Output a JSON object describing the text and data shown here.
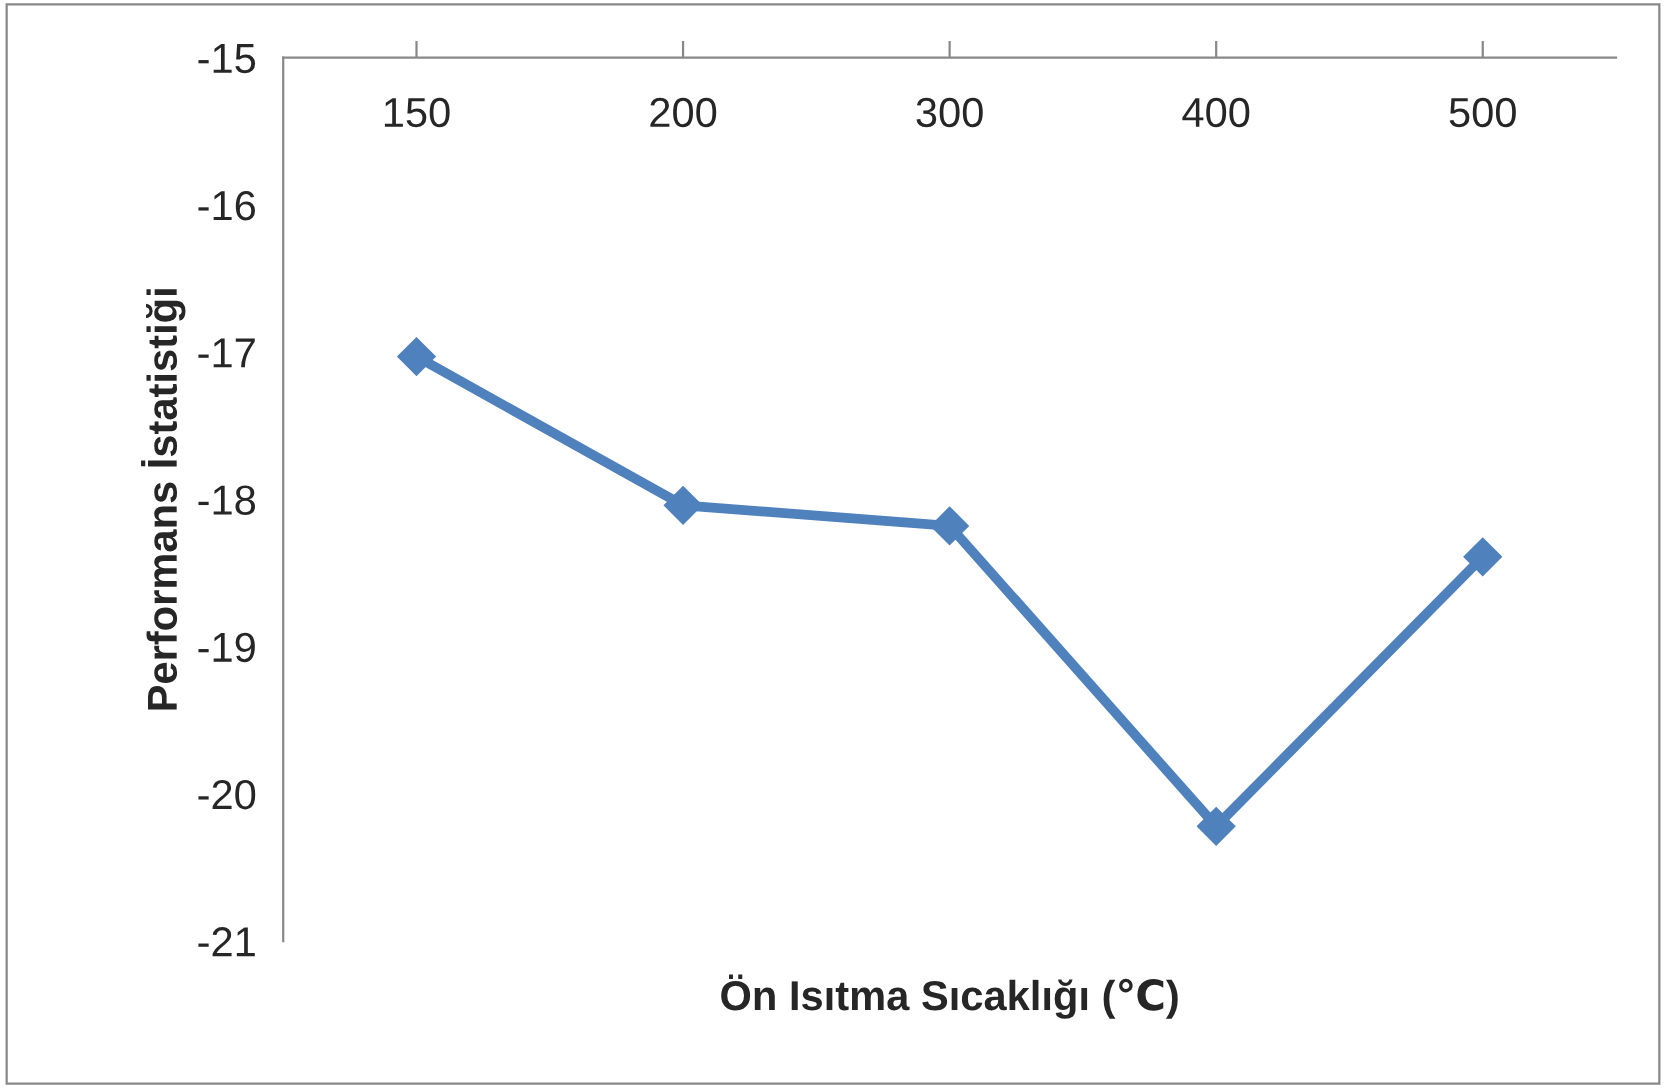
{
  "chart_data": {
    "type": "line",
    "xlabel": "Ön Isıtma Sıcaklığı (℃)",
    "ylabel": "Performans İstatistiği",
    "categories": [
      "150",
      "200",
      "300",
      "400",
      "500"
    ],
    "series": [
      {
        "color": "#4f81bd",
        "values": [
          -17.03,
          -18.04,
          -18.18,
          -20.22,
          -18.39
        ]
      }
    ],
    "ylim": [
      -21,
      -15
    ],
    "yticks": [
      -21,
      -20,
      -19,
      -18,
      -17,
      -16,
      -15
    ],
    "marker": "diamond",
    "line_style": "solid",
    "grid": false
  }
}
